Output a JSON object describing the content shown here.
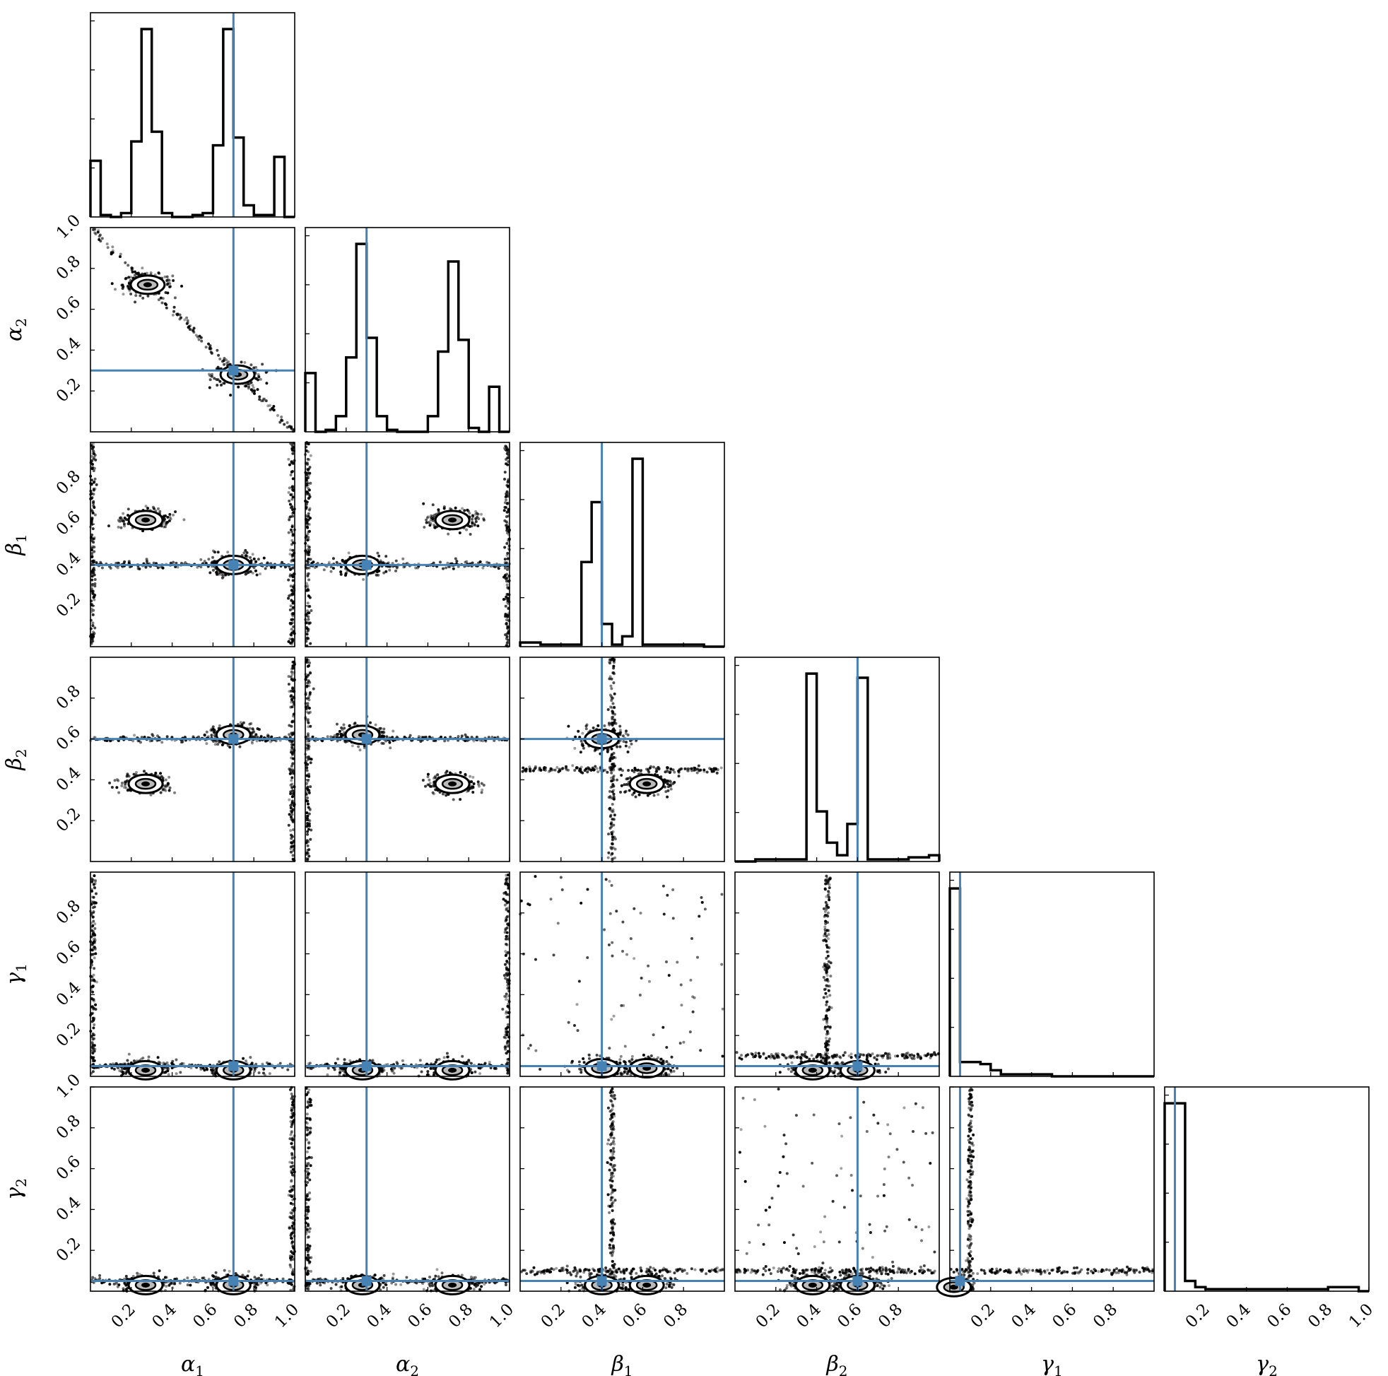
{
  "chart_data": {
    "type": "scatter",
    "subtype": "corner-plot",
    "parameters": [
      {
        "key": "alpha1",
        "sym": "α",
        "sub": "1"
      },
      {
        "key": "alpha2",
        "sym": "α",
        "sub": "2"
      },
      {
        "key": "beta1",
        "sym": "β",
        "sub": "1"
      },
      {
        "key": "beta2",
        "sym": "β",
        "sub": "2"
      },
      {
        "key": "gamma1",
        "sym": "γ",
        "sub": "1"
      },
      {
        "key": "gamma2",
        "sym": "γ",
        "sub": "2"
      }
    ],
    "truths": [
      0.7,
      0.3,
      0.4,
      0.6,
      0.05,
      0.05
    ],
    "truth_color": "#4682b4",
    "hist_color": "#000000",
    "xlim": [
      0,
      1
    ],
    "ylim": [
      0,
      1
    ],
    "x_tick_labels": {
      "alpha1": [
        "0.2",
        "0.4",
        "0.6",
        "0.8",
        "1.0"
      ],
      "alpha2": [
        "0.2",
        "0.4",
        "0.6",
        "0.8",
        "1.0"
      ],
      "beta1": [
        "0.2",
        "0.4",
        "0.6",
        "0.8"
      ],
      "beta2": [
        "0.2",
        "0.4",
        "0.6",
        "0.8"
      ],
      "gamma1": [
        "0.2",
        "0.4",
        "0.6",
        "0.8"
      ],
      "gamma2": [
        "0.2",
        "0.4",
        "0.6",
        "0.8",
        "1.0"
      ]
    },
    "y_tick_labels": {
      "alpha2": [
        "0.2",
        "0.4",
        "0.6",
        "0.8",
        "1.0"
      ],
      "beta1": [
        "0.2",
        "0.4",
        "0.6",
        "0.8"
      ],
      "beta2": [
        "0.2",
        "0.4",
        "0.6",
        "0.8"
      ],
      "gamma1": [
        "0.2",
        "0.4",
        "0.6",
        "0.8"
      ],
      "gamma2": [
        "0.2",
        "0.4",
        "0.6",
        "0.8",
        "1.0"
      ]
    },
    "histograms": [
      {
        "param": "alpha1",
        "bins": 20,
        "counts": [
          0.29,
          0.01,
          0.0,
          0.02,
          0.39,
          0.97,
          0.44,
          0.02,
          0.0,
          0.0,
          0.01,
          0.02,
          0.37,
          0.97,
          0.41,
          0.06,
          0.01,
          0.01,
          0.31,
          0.0
        ]
      },
      {
        "param": "alpha2",
        "bins": 20,
        "counts": [
          0.3,
          0.0,
          0.01,
          0.08,
          0.38,
          0.96,
          0.48,
          0.08,
          0.01,
          0.0,
          0.0,
          0.0,
          0.08,
          0.41,
          0.87,
          0.47,
          0.02,
          0.0,
          0.23,
          0.0
        ]
      },
      {
        "param": "beta1",
        "bins": 20,
        "counts": [
          0.02,
          0.02,
          0.01,
          0.01,
          0.01,
          0.01,
          0.41,
          0.7,
          0.11,
          0.01,
          0.05,
          0.91,
          0.01,
          0.01,
          0.01,
          0.01,
          0.01,
          0.01,
          0.0,
          0.0
        ]
      },
      {
        "param": "beta2",
        "bins": 20,
        "counts": [
          0.0,
          0.0,
          0.01,
          0.01,
          0.01,
          0.01,
          0.01,
          0.9,
          0.24,
          0.09,
          0.03,
          0.18,
          0.88,
          0.01,
          0.01,
          0.01,
          0.01,
          0.02,
          0.02,
          0.03
        ]
      },
      {
        "param": "gamma1",
        "bins": 20,
        "counts": [
          0.92,
          0.07,
          0.07,
          0.06,
          0.03,
          0.01,
          0.01,
          0.01,
          0.01,
          0.01,
          0.0,
          0.0,
          0.0,
          0.0,
          0.0,
          0.0,
          0.0,
          0.0,
          0.0,
          0.0
        ]
      },
      {
        "param": "gamma2",
        "bins": 20,
        "counts": [
          0.92,
          0.92,
          0.05,
          0.02,
          0.01,
          0.01,
          0.01,
          0.01,
          0.01,
          0.01,
          0.01,
          0.01,
          0.01,
          0.01,
          0.01,
          0.01,
          0.02,
          0.02,
          0.02,
          0.0
        ]
      }
    ],
    "pair_clusters": [
      {
        "x": "alpha1",
        "y": "alpha2",
        "centers": [
          [
            0.28,
            0.72
          ],
          [
            0.72,
            0.28
          ]
        ],
        "lines": [
          [
            [
              0,
              1
            ],
            [
              1,
              0
            ]
          ]
        ]
      },
      {
        "x": "alpha1",
        "y": "beta1",
        "centers": [
          [
            0.27,
            0.62
          ],
          [
            0.7,
            0.4
          ]
        ],
        "lines": [
          [
            [
              0,
              0.4
            ],
            [
              1,
              0.4
            ]
          ],
          [
            [
              0.01,
              0
            ],
            [
              0.01,
              1
            ]
          ],
          [
            [
              0.99,
              0
            ],
            [
              0.99,
              1
            ]
          ]
        ]
      },
      {
        "x": "alpha2",
        "y": "beta1",
        "centers": [
          [
            0.28,
            0.4
          ],
          [
            0.72,
            0.62
          ]
        ],
        "lines": [
          [
            [
              0,
              0.4
            ],
            [
              1,
              0.4
            ]
          ],
          [
            [
              0.01,
              0
            ],
            [
              0.01,
              1
            ]
          ],
          [
            [
              0.99,
              0
            ],
            [
              0.99,
              1
            ]
          ]
        ]
      },
      {
        "x": "beta1",
        "y": "beta2",
        "centers": [
          [
            0.4,
            0.6
          ],
          [
            0.62,
            0.38
          ]
        ],
        "lines": [
          [
            [
              0,
              0.45
            ],
            [
              1,
              0.45
            ]
          ],
          [
            [
              0.45,
              0
            ],
            [
              0.45,
              1
            ]
          ]
        ]
      },
      {
        "x": "alpha1",
        "y": "beta2",
        "centers": [
          [
            0.27,
            0.38
          ],
          [
            0.7,
            0.62
          ]
        ],
        "lines": [
          [
            [
              0,
              0.6
            ],
            [
              1,
              0.6
            ]
          ],
          [
            [
              0.99,
              0
            ],
            [
              0.99,
              1
            ]
          ]
        ]
      },
      {
        "x": "alpha2",
        "y": "beta2",
        "centers": [
          [
            0.28,
            0.62
          ],
          [
            0.72,
            0.38
          ]
        ],
        "lines": [
          [
            [
              0,
              0.6
            ],
            [
              1,
              0.6
            ]
          ],
          [
            [
              0.01,
              0
            ],
            [
              0.01,
              1
            ]
          ]
        ]
      },
      {
        "x": "alpha1",
        "y": "gamma1",
        "centers": [
          [
            0.27,
            0.03
          ],
          [
            0.7,
            0.03
          ]
        ],
        "lines": [
          [
            [
              0,
              0.05
            ],
            [
              1,
              0.05
            ]
          ],
          [
            [
              0.01,
              0
            ],
            [
              0.01,
              1
            ]
          ]
        ]
      },
      {
        "x": "alpha2",
        "y": "gamma1",
        "centers": [
          [
            0.28,
            0.03
          ],
          [
            0.72,
            0.03
          ]
        ],
        "lines": [
          [
            [
              0,
              0.05
            ],
            [
              1,
              0.05
            ]
          ],
          [
            [
              0.99,
              0
            ],
            [
              0.99,
              1
            ]
          ]
        ]
      },
      {
        "x": "beta2",
        "y": "gamma1",
        "centers": [
          [
            0.38,
            0.03
          ],
          [
            0.6,
            0.03
          ]
        ],
        "lines": [
          [
            [
              0,
              0.1
            ],
            [
              1,
              0.1
            ]
          ],
          [
            [
              0.45,
              0
            ],
            [
              0.45,
              1
            ]
          ]
        ]
      },
      {
        "x": "alpha1",
        "y": "gamma2",
        "centers": [
          [
            0.27,
            0.03
          ],
          [
            0.7,
            0.03
          ]
        ],
        "lines": [
          [
            [
              0,
              0.05
            ],
            [
              1,
              0.05
            ]
          ],
          [
            [
              0.99,
              0
            ],
            [
              0.99,
              1
            ]
          ]
        ]
      },
      {
        "x": "alpha2",
        "y": "gamma2",
        "centers": [
          [
            0.28,
            0.03
          ],
          [
            0.72,
            0.03
          ]
        ],
        "lines": [
          [
            [
              0,
              0.05
            ],
            [
              1,
              0.05
            ]
          ],
          [
            [
              0.01,
              0
            ],
            [
              0.01,
              1
            ]
          ]
        ]
      },
      {
        "x": "beta1",
        "y": "gamma2",
        "centers": [
          [
            0.4,
            0.03
          ],
          [
            0.62,
            0.03
          ]
        ],
        "lines": [
          [
            [
              0,
              0.1
            ],
            [
              1,
              0.1
            ]
          ],
          [
            [
              0.45,
              0
            ],
            [
              0.45,
              1
            ]
          ]
        ]
      },
      {
        "x": "beta2",
        "y": "gamma2",
        "centers": [
          [
            0.38,
            0.03
          ],
          [
            0.6,
            0.03
          ]
        ],
        "lines": [
          [
            [
              0,
              0.1
            ],
            [
              1,
              0.1
            ]
          ]
        ]
      },
      {
        "x": "gamma1",
        "y": "gamma2",
        "centers": [
          [
            0.02,
            0.02
          ]
        ],
        "lines": [
          [
            [
              0,
              0.1
            ],
            [
              1,
              0.1
            ]
          ],
          [
            [
              0.1,
              0
            ],
            [
              0.1,
              1
            ]
          ]
        ]
      },
      {
        "x": "beta1",
        "y": "gamma1",
        "centers": [
          [
            0.4,
            0.04
          ],
          [
            0.62,
            0.04
          ]
        ],
        "lines": []
      }
    ],
    "scattered_points": {
      "beta1-gamma1": true,
      "beta2-gamma2": true
    }
  }
}
